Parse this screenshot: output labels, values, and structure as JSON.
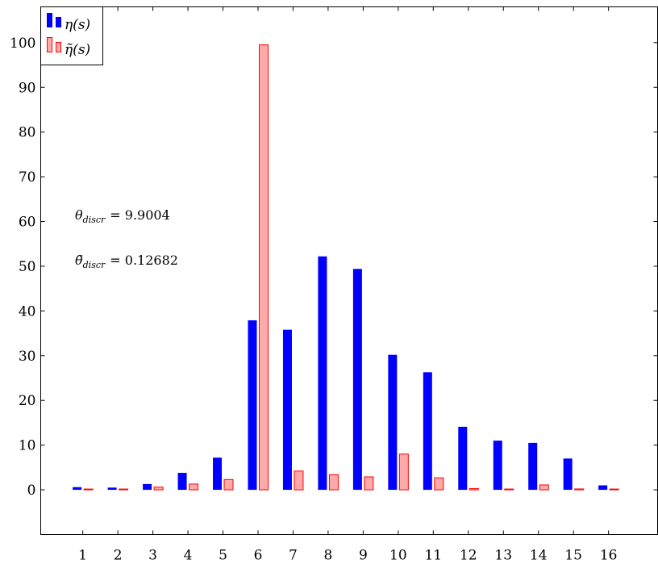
{
  "chart_data": {
    "type": "bar",
    "categories": [
      "1",
      "2",
      "3",
      "4",
      "5",
      "6",
      "7",
      "8",
      "9",
      "10",
      "11",
      "12",
      "13",
      "14",
      "15",
      "16"
    ],
    "series": [
      {
        "name": "η(s)",
        "color": "#0000ff",
        "fill": "#0000ff",
        "values": [
          0.6,
          0.5,
          1.3,
          3.8,
          7.2,
          37.9,
          35.8,
          52.2,
          49.4,
          30.2,
          26.3,
          14.1,
          11.0,
          10.5,
          7.0,
          1.0
        ]
      },
      {
        "name": "η̃(s)",
        "color": "#ff0000",
        "fill": "#ffaaaa",
        "values": [
          0.1,
          0.1,
          0.6,
          1.3,
          2.3,
          99.5,
          4.2,
          3.4,
          2.9,
          8.0,
          2.7,
          0.3,
          0.1,
          1.1,
          0.2,
          0.1
        ]
      }
    ],
    "ylim": [
      -10,
      108
    ],
    "yticks": [
      0,
      10,
      20,
      30,
      40,
      50,
      60,
      70,
      80,
      90,
      100
    ],
    "xlim": [
      -0.2,
      17.4
    ],
    "legend": {
      "position": "top-left"
    },
    "annotations": [
      {
        "symbol": "θ",
        "sub": "discr",
        "value": "= 9.9004"
      },
      {
        "symbol": "θ̃",
        "sub": "discr",
        "value": "= 0.12682"
      }
    ]
  }
}
